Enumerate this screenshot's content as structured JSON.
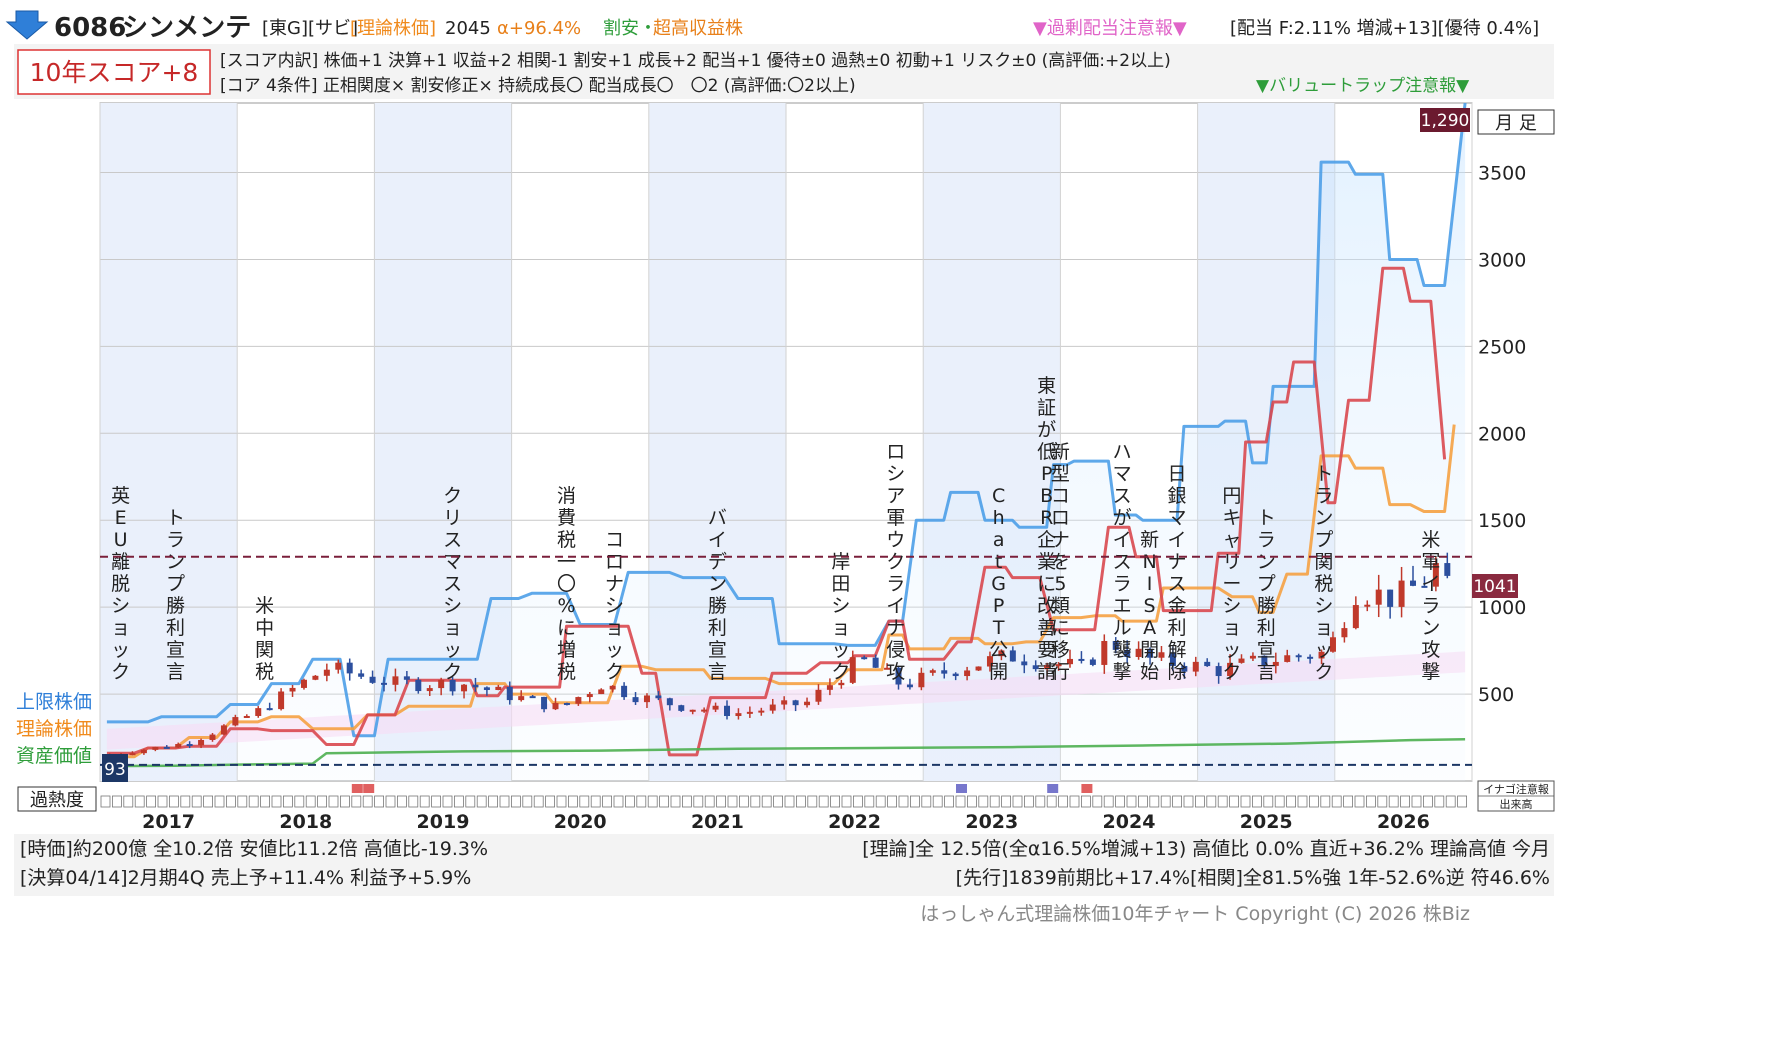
{
  "header": {
    "code": "6086",
    "name": "シンメンテ",
    "tags": "[東G][サビ]",
    "theory_label": "[理論株価]",
    "theory_value": "2045",
    "alpha": "α+96.4%",
    "cheap": "割安・",
    "super_profit": "超高収益株",
    "surplus_warning": "▼過剰配当注意報▼",
    "dividend": "[配当 F:2.11% 増減+13][優待 0.4%]"
  },
  "score": {
    "badge": "10年スコア+8",
    "breakdown": "[スコア内訳] 株価+1 決算+1 収益+2 相関-1 割安+1 成長+2 配当+1 優待±0 過熱±0 初動+1 リスク±0 (高評価:+2以上)",
    "core": "[コア 4条件] 正相関度× 割安修正× 持続成長〇 配当成長〇　〇2 (高評価:〇2以上)",
    "value_trap": "▼バリュートラップ注意報▼"
  },
  "left_labels": {
    "upper": "上限株価",
    "theory": "理論株価",
    "asset": "資産価値"
  },
  "period_label": "月 足",
  "max_price_label": "1,290",
  "min_price_label": "93",
  "current_price_label": "1041",
  "heat_label": "過熱度",
  "right_box": {
    "line1": "イナゴ注意報",
    "line2": "出来高"
  },
  "footer": {
    "line1_left": "[時価]約200億 全10.2倍 安値比11.2倍 高値比-19.3%",
    "line1_right": "[理論]全 12.5倍(全α16.5%増減+13) 高値比 0.0% 直近+36.2% 理論高値 今月",
    "line2_left": "[決算04/14]2月期4Q 売上予+11.4% 利益予+5.9%",
    "line2_right": "[先行]1839前期比+17.4%[相関]全81.5%強 1年-52.6%逆 符46.6%",
    "copyright": "はっしゃん式理論株価10年チャート Copyright (C) 2026 株Biz"
  },
  "colors": {
    "upper": "#4d9fe8",
    "theory": "#f5a142",
    "red_line": "#d9484f",
    "asset": "#4caf50",
    "band": "#f7a3e6"
  },
  "chart_data": {
    "type": "line",
    "x_years": [
      "2017",
      "2018",
      "2019",
      "2020",
      "2021",
      "2022",
      "2023",
      "2024",
      "2025",
      "2026"
    ],
    "y_ticks": [
      500,
      1000,
      1500,
      2000,
      2500,
      3000,
      3500
    ],
    "ylim": [
      0,
      3900
    ],
    "max_price": 1290,
    "min_price": 93,
    "current_price": 1041,
    "events": [
      {
        "x": 2016.5,
        "label": "英EU離脱ショック"
      },
      {
        "x": 2016.9,
        "label": "トランプ勝利宣言"
      },
      {
        "x": 2017.55,
        "label": "米中関税"
      },
      {
        "x": 2018.92,
        "label": "クリスマスショック"
      },
      {
        "x": 2019.75,
        "label": "消費税一〇%に増税"
      },
      {
        "x": 2020.1,
        "label": "コロナショック"
      },
      {
        "x": 2020.85,
        "label": "バイデン勝利宣言"
      },
      {
        "x": 2021.75,
        "label": "岸田ショック"
      },
      {
        "x": 2022.15,
        "label": "ロシア軍ウクライナ侵攻"
      },
      {
        "x": 2022.9,
        "label": "ChatGPT公開"
      },
      {
        "x": 2023.25,
        "label": "東証が低PBR企業に改善要請"
      },
      {
        "x": 2023.35,
        "label": "新型コロナを5類に移行"
      },
      {
        "x": 2023.8,
        "label": "ハマスがイスラエル襲撃"
      },
      {
        "x": 2024.0,
        "label": "新NISA開始"
      },
      {
        "x": 2024.2,
        "label": "日銀マイナス金利解除"
      },
      {
        "x": 2024.6,
        "label": "円キャリーショック"
      },
      {
        "x": 2024.85,
        "label": "トランプ勝利宣言"
      },
      {
        "x": 2025.27,
        "label": "トランプ関税ショック"
      },
      {
        "x": 2026.05,
        "label": "米軍イラン攻撃"
      }
    ],
    "series": [
      {
        "name": "上限株価",
        "points": [
          [
            2016.4,
            340
          ],
          [
            2016.7,
            340
          ],
          [
            2016.8,
            370
          ],
          [
            2017.2,
            370
          ],
          [
            2017.3,
            440
          ],
          [
            2017.5,
            440
          ],
          [
            2017.6,
            560
          ],
          [
            2017.8,
            560
          ],
          [
            2017.9,
            700
          ],
          [
            2018.1,
            700
          ],
          [
            2018.2,
            260
          ],
          [
            2018.35,
            260
          ],
          [
            2018.45,
            700
          ],
          [
            2019.1,
            700
          ],
          [
            2019.2,
            1050
          ],
          [
            2019.4,
            1050
          ],
          [
            2019.5,
            1080
          ],
          [
            2019.75,
            1080
          ],
          [
            2019.85,
            900
          ],
          [
            2020.1,
            900
          ],
          [
            2020.2,
            1200
          ],
          [
            2020.5,
            1200
          ],
          [
            2020.6,
            1170
          ],
          [
            2020.9,
            1170
          ],
          [
            2021.0,
            1050
          ],
          [
            2021.25,
            1050
          ],
          [
            2021.3,
            790
          ],
          [
            2021.7,
            790
          ],
          [
            2021.8,
            780
          ],
          [
            2022.0,
            780
          ],
          [
            2022.1,
            920
          ],
          [
            2022.2,
            920
          ],
          [
            2022.3,
            1500
          ],
          [
            2022.5,
            1500
          ],
          [
            2022.55,
            1660
          ],
          [
            2022.75,
            1660
          ],
          [
            2022.8,
            1500
          ],
          [
            2023.0,
            1500
          ],
          [
            2023.05,
            1460
          ],
          [
            2023.25,
            1460
          ],
          [
            2023.3,
            1820
          ],
          [
            2023.4,
            1820
          ],
          [
            2023.45,
            1840
          ],
          [
            2023.7,
            1840
          ],
          [
            2023.75,
            1530
          ],
          [
            2023.9,
            1530
          ],
          [
            2023.95,
            1500
          ],
          [
            2024.2,
            1500
          ],
          [
            2024.25,
            2040
          ],
          [
            2024.5,
            2040
          ],
          [
            2024.55,
            2070
          ],
          [
            2024.7,
            2070
          ],
          [
            2024.75,
            1830
          ],
          [
            2024.85,
            1830
          ],
          [
            2024.9,
            2270
          ],
          [
            2025.2,
            2270
          ],
          [
            2025.25,
            3560
          ],
          [
            2025.45,
            3560
          ],
          [
            2025.5,
            3490
          ],
          [
            2025.7,
            3490
          ],
          [
            2025.75,
            3000
          ],
          [
            2025.95,
            3000
          ],
          [
            2026.0,
            2850
          ],
          [
            2026.15,
            2850
          ],
          [
            2026.3,
            3900
          ]
        ]
      },
      {
        "name": "理論株価",
        "points": [
          [
            2016.4,
            140
          ],
          [
            2016.6,
            140
          ],
          [
            2016.7,
            190
          ],
          [
            2016.9,
            190
          ],
          [
            2017.0,
            250
          ],
          [
            2017.2,
            250
          ],
          [
            2017.3,
            340
          ],
          [
            2017.5,
            340
          ],
          [
            2017.6,
            370
          ],
          [
            2017.8,
            370
          ],
          [
            2017.9,
            300
          ],
          [
            2018.2,
            300
          ],
          [
            2018.3,
            380
          ],
          [
            2018.5,
            380
          ],
          [
            2018.6,
            430
          ],
          [
            2019.05,
            430
          ],
          [
            2019.1,
            560
          ],
          [
            2019.3,
            560
          ],
          [
            2019.35,
            500
          ],
          [
            2019.6,
            500
          ],
          [
            2019.65,
            450
          ],
          [
            2020.05,
            450
          ],
          [
            2020.15,
            660
          ],
          [
            2020.3,
            660
          ],
          [
            2020.4,
            640
          ],
          [
            2020.75,
            640
          ],
          [
            2020.8,
            590
          ],
          [
            2021.2,
            590
          ],
          [
            2021.3,
            560
          ],
          [
            2021.7,
            560
          ],
          [
            2021.8,
            640
          ],
          [
            2022.05,
            640
          ],
          [
            2022.1,
            840
          ],
          [
            2022.2,
            840
          ],
          [
            2022.25,
            760
          ],
          [
            2022.5,
            760
          ],
          [
            2022.55,
            820
          ],
          [
            2022.75,
            820
          ],
          [
            2022.8,
            790
          ],
          [
            2023.0,
            790
          ],
          [
            2023.1,
            800
          ],
          [
            2023.2,
            800
          ],
          [
            2023.3,
            940
          ],
          [
            2023.5,
            940
          ],
          [
            2023.6,
            950
          ],
          [
            2023.75,
            950
          ],
          [
            2023.8,
            920
          ],
          [
            2024.05,
            920
          ],
          [
            2024.1,
            1110
          ],
          [
            2024.5,
            1110
          ],
          [
            2024.6,
            1060
          ],
          [
            2024.75,
            1060
          ],
          [
            2024.8,
            970
          ],
          [
            2024.9,
            970
          ],
          [
            2025.0,
            1190
          ],
          [
            2025.15,
            1190
          ],
          [
            2025.25,
            1870
          ],
          [
            2025.45,
            1870
          ],
          [
            2025.5,
            1800
          ],
          [
            2025.7,
            1800
          ],
          [
            2025.75,
            1590
          ],
          [
            2025.9,
            1590
          ],
          [
            2026.0,
            1550
          ],
          [
            2026.15,
            1550
          ],
          [
            2026.22,
            2050
          ]
        ]
      },
      {
        "name": "",
        "points": [
          [
            2016.4,
            160
          ],
          [
            2016.6,
            160
          ],
          [
            2016.7,
            190
          ],
          [
            2016.9,
            190
          ],
          [
            2017.0,
            200
          ],
          [
            2017.2,
            200
          ],
          [
            2017.3,
            300
          ],
          [
            2017.5,
            300
          ],
          [
            2017.6,
            290
          ],
          [
            2017.9,
            290
          ],
          [
            2018.0,
            210
          ],
          [
            2018.2,
            210
          ],
          [
            2018.3,
            380
          ],
          [
            2018.5,
            380
          ],
          [
            2018.6,
            580
          ],
          [
            2019.05,
            580
          ],
          [
            2019.1,
            490
          ],
          [
            2019.25,
            490
          ],
          [
            2019.3,
            540
          ],
          [
            2019.7,
            540
          ],
          [
            2019.75,
            890
          ],
          [
            2020.2,
            890
          ],
          [
            2020.3,
            620
          ],
          [
            2020.4,
            620
          ],
          [
            2020.5,
            150
          ],
          [
            2020.7,
            150
          ],
          [
            2020.8,
            480
          ],
          [
            2021.2,
            480
          ],
          [
            2021.25,
            620
          ],
          [
            2021.5,
            620
          ],
          [
            2021.6,
            680
          ],
          [
            2021.8,
            680
          ],
          [
            2021.85,
            720
          ],
          [
            2022.0,
            720
          ],
          [
            2022.1,
            920
          ],
          [
            2022.2,
            920
          ],
          [
            2022.25,
            700
          ],
          [
            2022.5,
            700
          ],
          [
            2022.6,
            800
          ],
          [
            2022.7,
            800
          ],
          [
            2022.8,
            1230
          ],
          [
            2022.95,
            1230
          ],
          [
            2023.0,
            1170
          ],
          [
            2023.2,
            1170
          ],
          [
            2023.3,
            870
          ],
          [
            2023.6,
            870
          ],
          [
            2023.7,
            1460
          ],
          [
            2023.85,
            1460
          ],
          [
            2023.9,
            1290
          ],
          [
            2024.05,
            1290
          ],
          [
            2024.1,
            980
          ],
          [
            2024.45,
            980
          ],
          [
            2024.5,
            1310
          ],
          [
            2024.65,
            1310
          ],
          [
            2024.7,
            1950
          ],
          [
            2024.85,
            1950
          ],
          [
            2024.9,
            2180
          ],
          [
            2025.0,
            2180
          ],
          [
            2025.05,
            2410
          ],
          [
            2025.2,
            2410
          ],
          [
            2025.3,
            1600
          ],
          [
            2025.35,
            1600
          ],
          [
            2025.45,
            2190
          ],
          [
            2025.6,
            2190
          ],
          [
            2025.7,
            2950
          ],
          [
            2025.85,
            2950
          ],
          [
            2025.9,
            2760
          ],
          [
            2026.05,
            2760
          ],
          [
            2026.15,
            1850
          ]
        ]
      },
      {
        "name": "資産価値",
        "points": [
          [
            2016.4,
            85
          ],
          [
            2016.9,
            88
          ],
          [
            2017.4,
            95
          ],
          [
            2017.9,
            100
          ],
          [
            2018.0,
            160
          ],
          [
            2019.0,
            170
          ],
          [
            2020.0,
            175
          ],
          [
            2021.0,
            185
          ],
          [
            2022.0,
            190
          ],
          [
            2023.0,
            195
          ],
          [
            2024.0,
            205
          ],
          [
            2025.0,
            215
          ],
          [
            2025.9,
            235
          ],
          [
            2026.3,
            240
          ]
        ]
      }
    ]
  }
}
